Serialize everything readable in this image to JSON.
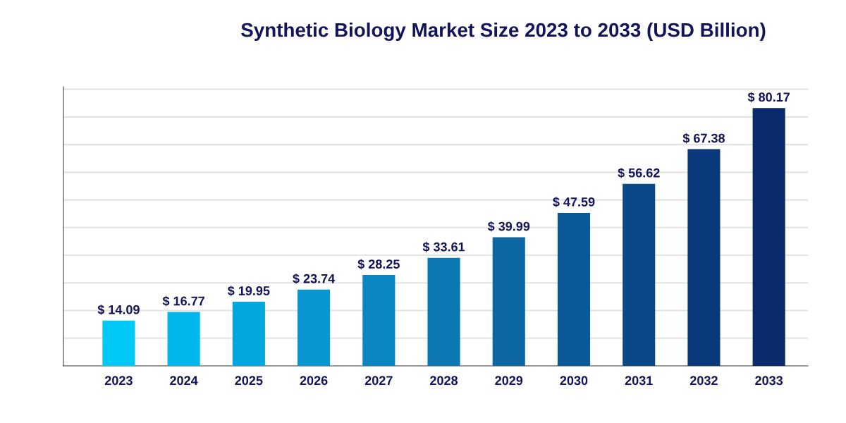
{
  "chart_data": {
    "type": "bar",
    "title": "Synthetic Biology Market Size 2023 to 2033 (USD Billion)",
    "categories": [
      "2023",
      "2024",
      "2025",
      "2026",
      "2027",
      "2028",
      "2029",
      "2030",
      "2031",
      "2032",
      "2033"
    ],
    "values": [
      14.09,
      16.77,
      19.95,
      23.74,
      28.25,
      33.61,
      39.99,
      47.59,
      56.62,
      67.38,
      80.17
    ],
    "value_labels": [
      "$ 14.09",
      "$ 16.77",
      "$ 19.95",
      "$ 23.74",
      "$ 28.25",
      "$ 33.61",
      "$ 39.99",
      "$ 47.59",
      "$ 56.62",
      "$ 67.38",
      "$ 80.17"
    ],
    "colors": [
      "#00c9f7",
      "#00b6ec",
      "#02a7df",
      "#0896d0",
      "#0a87c2",
      "#0b78b3",
      "#0c67a3",
      "#0b5896",
      "#0a4888",
      "#0a397b",
      "#0b296d"
    ],
    "ylim": [
      0,
      86.8
    ],
    "yticks": [
      {
        "value": 0,
        "label": null
      },
      {
        "value": 8.6,
        "label": null
      },
      {
        "value": 17.2,
        "label": null
      },
      {
        "value": 25.8,
        "label": null
      },
      {
        "value": 34.4,
        "label": null
      },
      {
        "value": 43.0,
        "label": null
      },
      {
        "value": 51.6,
        "label": null
      },
      {
        "value": 60.2,
        "label": null
      },
      {
        "value": 68.8,
        "label": null
      },
      {
        "value": 77.4,
        "label": null
      },
      {
        "value": 86.0,
        "label": null
      }
    ],
    "grid": "y",
    "tick_labels": "x"
  }
}
